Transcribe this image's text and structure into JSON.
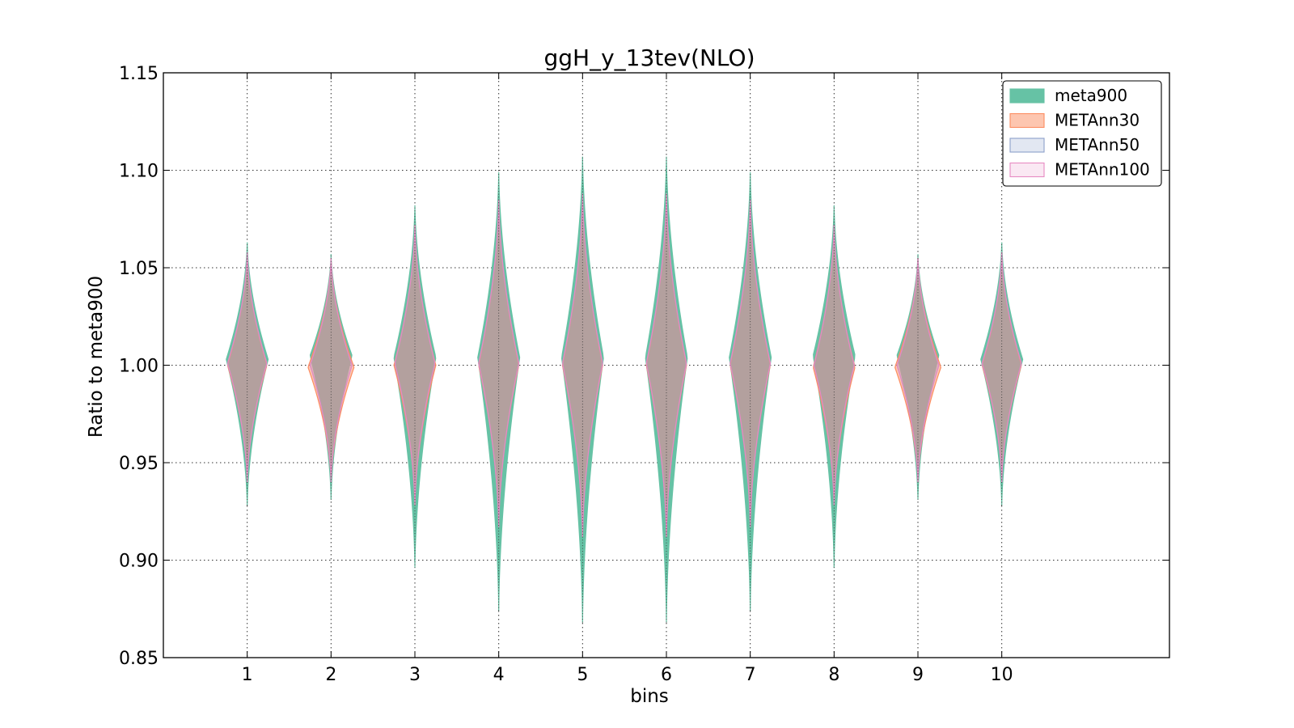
{
  "chart_data": {
    "type": "violin",
    "title": "ggH_y_13tev(NLO)",
    "xlabel": "bins",
    "ylabel": "Ratio to meta900",
    "categories": [
      "1",
      "2",
      "3",
      "4",
      "5",
      "6",
      "7",
      "8",
      "9",
      "10"
    ],
    "xlim": [
      0,
      12
    ],
    "ylim": [
      0.85,
      1.15
    ],
    "yticks": [
      "0.85",
      "0.90",
      "0.95",
      "1.00",
      "1.05",
      "1.10",
      "1.15"
    ],
    "grid": true,
    "legend_position": "top-right",
    "series": [
      {
        "name": "meta900",
        "color": "#66c2a5",
        "min": [
          0.928,
          0.931,
          0.896,
          0.874,
          0.868,
          0.868,
          0.874,
          0.896,
          0.931,
          0.928
        ],
        "max": [
          1.063,
          1.057,
          1.082,
          1.099,
          1.107,
          1.107,
          1.099,
          1.082,
          1.057,
          1.063
        ],
        "center": [
          1.003,
          1.005,
          1.004,
          1.004,
          1.004,
          1.004,
          1.004,
          1.005,
          1.005,
          1.003
        ],
        "max_width": [
          0.5,
          0.5,
          0.5,
          0.5,
          0.5,
          0.5,
          0.5,
          0.5,
          0.5,
          0.5
        ]
      },
      {
        "name": "METAnn30",
        "color": "#fc8d62",
        "min": [
          0.94,
          0.94,
          0.928,
          0.917,
          0.912,
          0.912,
          0.917,
          0.928,
          0.94,
          0.94
        ],
        "max": [
          1.058,
          1.055,
          1.072,
          1.085,
          1.088,
          1.088,
          1.085,
          1.072,
          1.055,
          1.058
        ],
        "center": [
          1.0,
          0.999,
          1.0,
          1.0,
          1.0,
          1.0,
          1.0,
          0.999,
          0.999,
          1.0
        ],
        "max_width": [
          0.47,
          0.55,
          0.5,
          0.48,
          0.48,
          0.48,
          0.48,
          0.5,
          0.55,
          0.47
        ]
      },
      {
        "name": "METAnn50",
        "color": "#8da0cb",
        "min": [
          0.94,
          0.94,
          0.928,
          0.917,
          0.912,
          0.912,
          0.917,
          0.928,
          0.94,
          0.94
        ],
        "max": [
          1.058,
          1.055,
          1.072,
          1.085,
          1.088,
          1.088,
          1.085,
          1.072,
          1.055,
          1.058
        ],
        "center": [
          1.001,
          1.0,
          1.001,
          1.001,
          1.001,
          1.001,
          1.001,
          1.0,
          1.0,
          1.001
        ],
        "max_width": [
          0.47,
          0.5,
          0.48,
          0.48,
          0.48,
          0.48,
          0.48,
          0.48,
          0.5,
          0.47
        ]
      },
      {
        "name": "METAnn100",
        "color": "#e78ac3",
        "min": [
          0.94,
          0.94,
          0.928,
          0.917,
          0.912,
          0.912,
          0.917,
          0.928,
          0.94,
          0.94
        ],
        "max": [
          1.058,
          1.055,
          1.072,
          1.085,
          1.088,
          1.088,
          1.085,
          1.072,
          1.055,
          1.058
        ],
        "center": [
          1.001,
          1.0,
          1.001,
          1.001,
          1.001,
          1.001,
          1.001,
          1.0,
          1.0,
          1.001
        ],
        "max_width": [
          0.47,
          0.5,
          0.48,
          0.48,
          0.48,
          0.48,
          0.48,
          0.48,
          0.5,
          0.47
        ]
      }
    ]
  }
}
